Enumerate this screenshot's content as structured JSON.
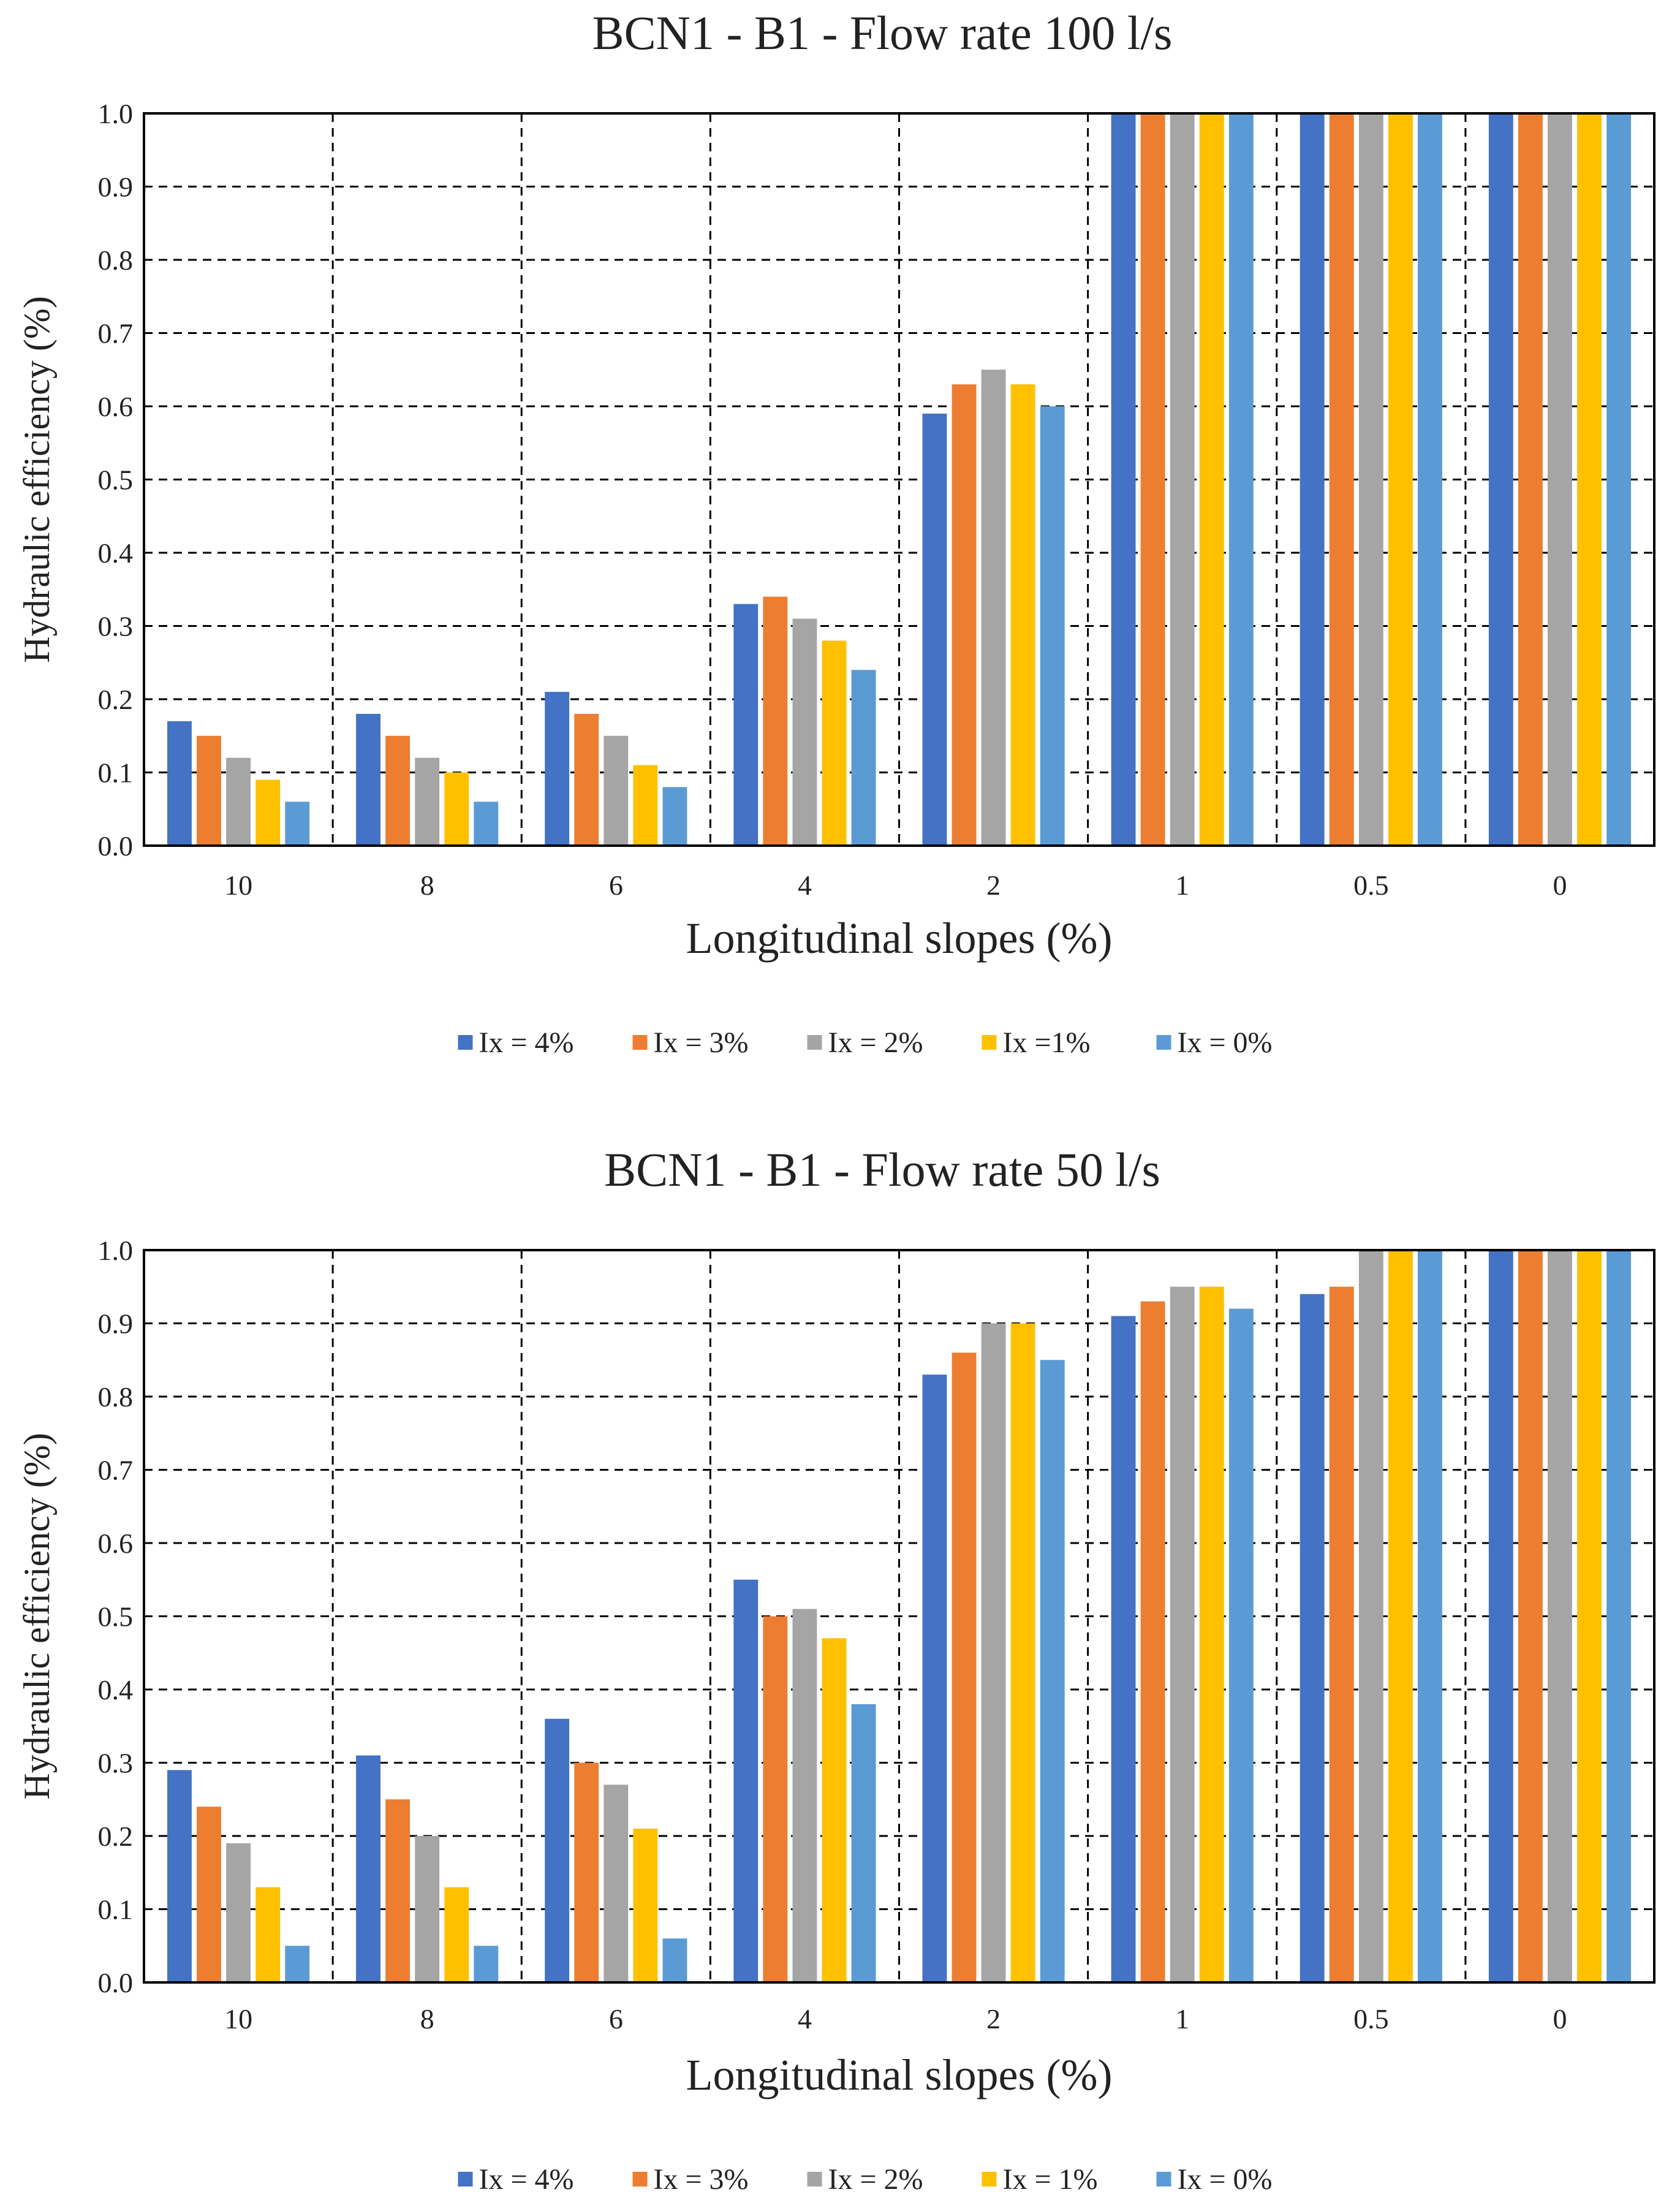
{
  "chart_data": [
    {
      "type": "bar",
      "title": "BCN1 - B1 - Flow rate 100 l/s",
      "xlabel": "Longitudinal slopes (%)",
      "ylabel": "Hydraulic efficiency (%)",
      "ylim": [
        0,
        1
      ],
      "yticks": [
        "0.0",
        "0.1",
        "0.2",
        "0.3",
        "0.4",
        "0.5",
        "0.6",
        "0.7",
        "0.8",
        "0.9",
        "1.0"
      ],
      "grid": true,
      "legend_position": "bottom",
      "categories": [
        "10",
        "8",
        "6",
        "4",
        "2",
        "1",
        "0.5",
        "0"
      ],
      "series": [
        {
          "name": "Ix = 4%",
          "color": "#4472c4",
          "values": [
            0.17,
            0.18,
            0.21,
            0.33,
            0.59,
            1.0,
            1.0,
            1.0
          ]
        },
        {
          "name": "Ix = 3%",
          "color": "#ed7d31",
          "values": [
            0.15,
            0.15,
            0.18,
            0.34,
            0.63,
            1.0,
            1.0,
            1.0
          ]
        },
        {
          "name": "Ix = 2%",
          "color": "#a5a5a5",
          "values": [
            0.12,
            0.12,
            0.15,
            0.31,
            0.65,
            1.0,
            1.0,
            1.0
          ]
        },
        {
          "name": "Ix =1%",
          "color": "#ffc000",
          "values": [
            0.09,
            0.1,
            0.11,
            0.28,
            0.63,
            1.0,
            1.0,
            1.0
          ]
        },
        {
          "name": "Ix = 0%",
          "color": "#5b9bd5",
          "values": [
            0.06,
            0.06,
            0.08,
            0.24,
            0.6,
            1.0,
            1.0,
            1.0
          ]
        }
      ]
    },
    {
      "type": "bar",
      "title": "BCN1 - B1 - Flow rate 50 l/s",
      "xlabel": "Longitudinal slopes (%)",
      "ylabel": "Hydraulic efficiency (%)",
      "ylim": [
        0,
        1
      ],
      "yticks": [
        "0.0",
        "0.1",
        "0.2",
        "0.3",
        "0.4",
        "0.5",
        "0.6",
        "0.7",
        "0.8",
        "0.9",
        "1.0"
      ],
      "grid": true,
      "legend_position": "bottom",
      "categories": [
        "10",
        "8",
        "6",
        "4",
        "2",
        "1",
        "0.5",
        "0"
      ],
      "series": [
        {
          "name": "Ix = 4%",
          "color": "#4472c4",
          "values": [
            0.29,
            0.31,
            0.36,
            0.55,
            0.83,
            0.91,
            0.94,
            1.0
          ]
        },
        {
          "name": "Ix = 3%",
          "color": "#ed7d31",
          "values": [
            0.24,
            0.25,
            0.3,
            0.5,
            0.86,
            0.93,
            0.95,
            1.0
          ]
        },
        {
          "name": "Ix = 2%",
          "color": "#a5a5a5",
          "values": [
            0.19,
            0.2,
            0.27,
            0.51,
            0.9,
            0.95,
            1.0,
            1.0
          ]
        },
        {
          "name": "Ix = 1%",
          "color": "#ffc000",
          "values": [
            0.13,
            0.13,
            0.21,
            0.47,
            0.9,
            0.95,
            1.0,
            1.0
          ]
        },
        {
          "name": "Ix = 0%",
          "color": "#5b9bd5",
          "values": [
            0.05,
            0.05,
            0.06,
            0.38,
            0.85,
            0.92,
            1.0,
            1.0
          ]
        }
      ]
    }
  ]
}
